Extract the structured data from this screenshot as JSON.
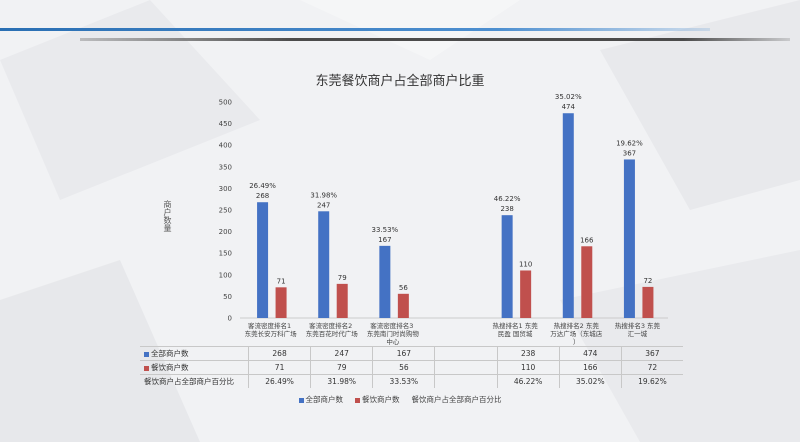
{
  "title": "东莞餐饮商户占全部商户比重",
  "chart_data": {
    "type": "bar",
    "title": "东莞餐饮商户占全部商户比重",
    "ylabel": "商户数量",
    "ylim": [
      0,
      500
    ],
    "yticks": [
      0,
      50,
      100,
      150,
      200,
      250,
      300,
      350,
      400,
      450,
      500
    ],
    "grid": false,
    "legend_position": "bottom",
    "categories": [
      "客流密度排名1 东莞长安万科广场",
      "客流密度排名2 东莞百花时代广场",
      "客流密度排名3 东莞南门时尚购物中心",
      "",
      "热搜排名1 东莞民盈 国贸城",
      "热搜排名2 东莞万达广场（东城店）",
      "热搜排名3 东莞汇一城"
    ],
    "series": [
      {
        "name": "全部商户数",
        "color": "#4472c4",
        "values": [
          268,
          247,
          167,
          null,
          238,
          474,
          367
        ]
      },
      {
        "name": "餐饮商户数",
        "color": "#c0504d",
        "values": [
          71,
          79,
          56,
          null,
          110,
          166,
          72
        ]
      }
    ],
    "percent_series": {
      "name": "餐饮商户占全部商户百分比",
      "values": [
        "26.49%",
        "31.98%",
        "33.53%",
        "",
        "46.22%",
        "35.02%",
        "19.62%"
      ]
    }
  },
  "table": {
    "rows": [
      {
        "label": "全部商户数",
        "color": "#4472c4",
        "values": [
          "268",
          "247",
          "167",
          "",
          "238",
          "474",
          "367"
        ]
      },
      {
        "label": "餐饮商户数",
        "color": "#c0504d",
        "values": [
          "71",
          "79",
          "56",
          "",
          "110",
          "166",
          "72"
        ]
      },
      {
        "label": "餐饮商户占全部商户百分比",
        "color": "",
        "values": [
          "26.49%",
          "31.98%",
          "33.53%",
          "",
          "46.22%",
          "35.02%",
          "19.62%"
        ]
      }
    ]
  },
  "legend": [
    {
      "label": "全部商户数",
      "color": "#4472c4"
    },
    {
      "label": "餐饮商户数",
      "color": "#c0504d"
    },
    {
      "label": "餐饮商户占全部商户百分比",
      "color": ""
    }
  ]
}
